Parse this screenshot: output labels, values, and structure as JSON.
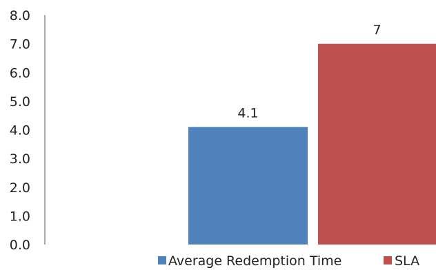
{
  "chart_data": {
    "type": "bar",
    "categories": [
      ""
    ],
    "series": [
      {
        "name": "Average Redemption Time",
        "values": [
          4.1
        ],
        "color": "#4f81bd",
        "label": "4.1"
      },
      {
        "name": "SLA",
        "values": [
          7
        ],
        "color": "#c0504d",
        "label": "7"
      }
    ],
    "ylim": [
      0,
      8
    ],
    "yticks": [
      "0.0",
      "1.0",
      "2.0",
      "3.0",
      "4.0",
      "5.0",
      "6.0",
      "7.0",
      "8.0"
    ],
    "title": "",
    "xlabel": "",
    "ylabel": "",
    "grid": false,
    "legend_position": "bottom"
  }
}
